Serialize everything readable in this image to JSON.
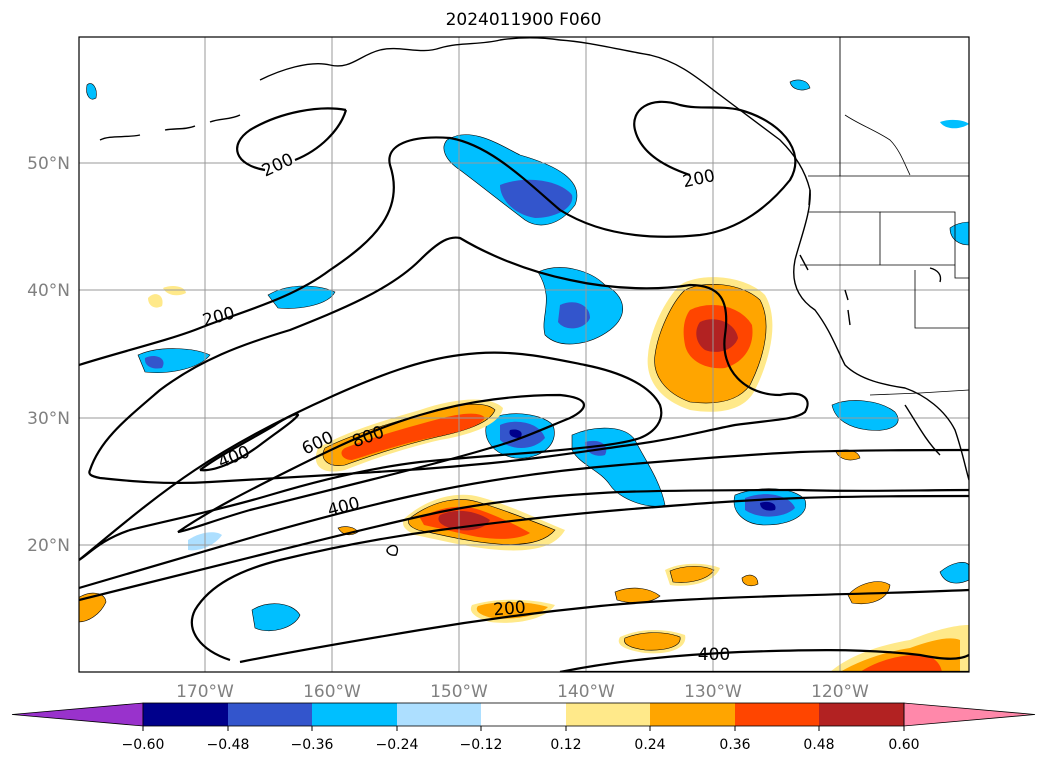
{
  "title": "2024011900 F060",
  "map": {
    "lat_labels": [
      "50°N",
      "40°N",
      "30°N",
      "20°N"
    ],
    "lon_labels": [
      "170°W",
      "160°W",
      "150°W",
      "140°W",
      "130°W",
      "120°W"
    ],
    "contour_labels": [
      "200",
      "200",
      "200",
      "400",
      "600",
      "800",
      "400",
      "200",
      "400"
    ]
  },
  "colorbar": {
    "ticks": [
      "−0.60",
      "−0.48",
      "−0.36",
      "−0.24",
      "−0.12",
      "0.12",
      "0.24",
      "0.36",
      "0.48",
      "0.60"
    ],
    "colors": [
      "#9932CC",
      "#00008B",
      "#3355CC",
      "#00BFFF",
      "#ADDFFF",
      "#FFFFFF",
      "#FFE98A",
      "#FFA500",
      "#FF4500",
      "#B22222",
      "#FF88AA"
    ]
  }
}
